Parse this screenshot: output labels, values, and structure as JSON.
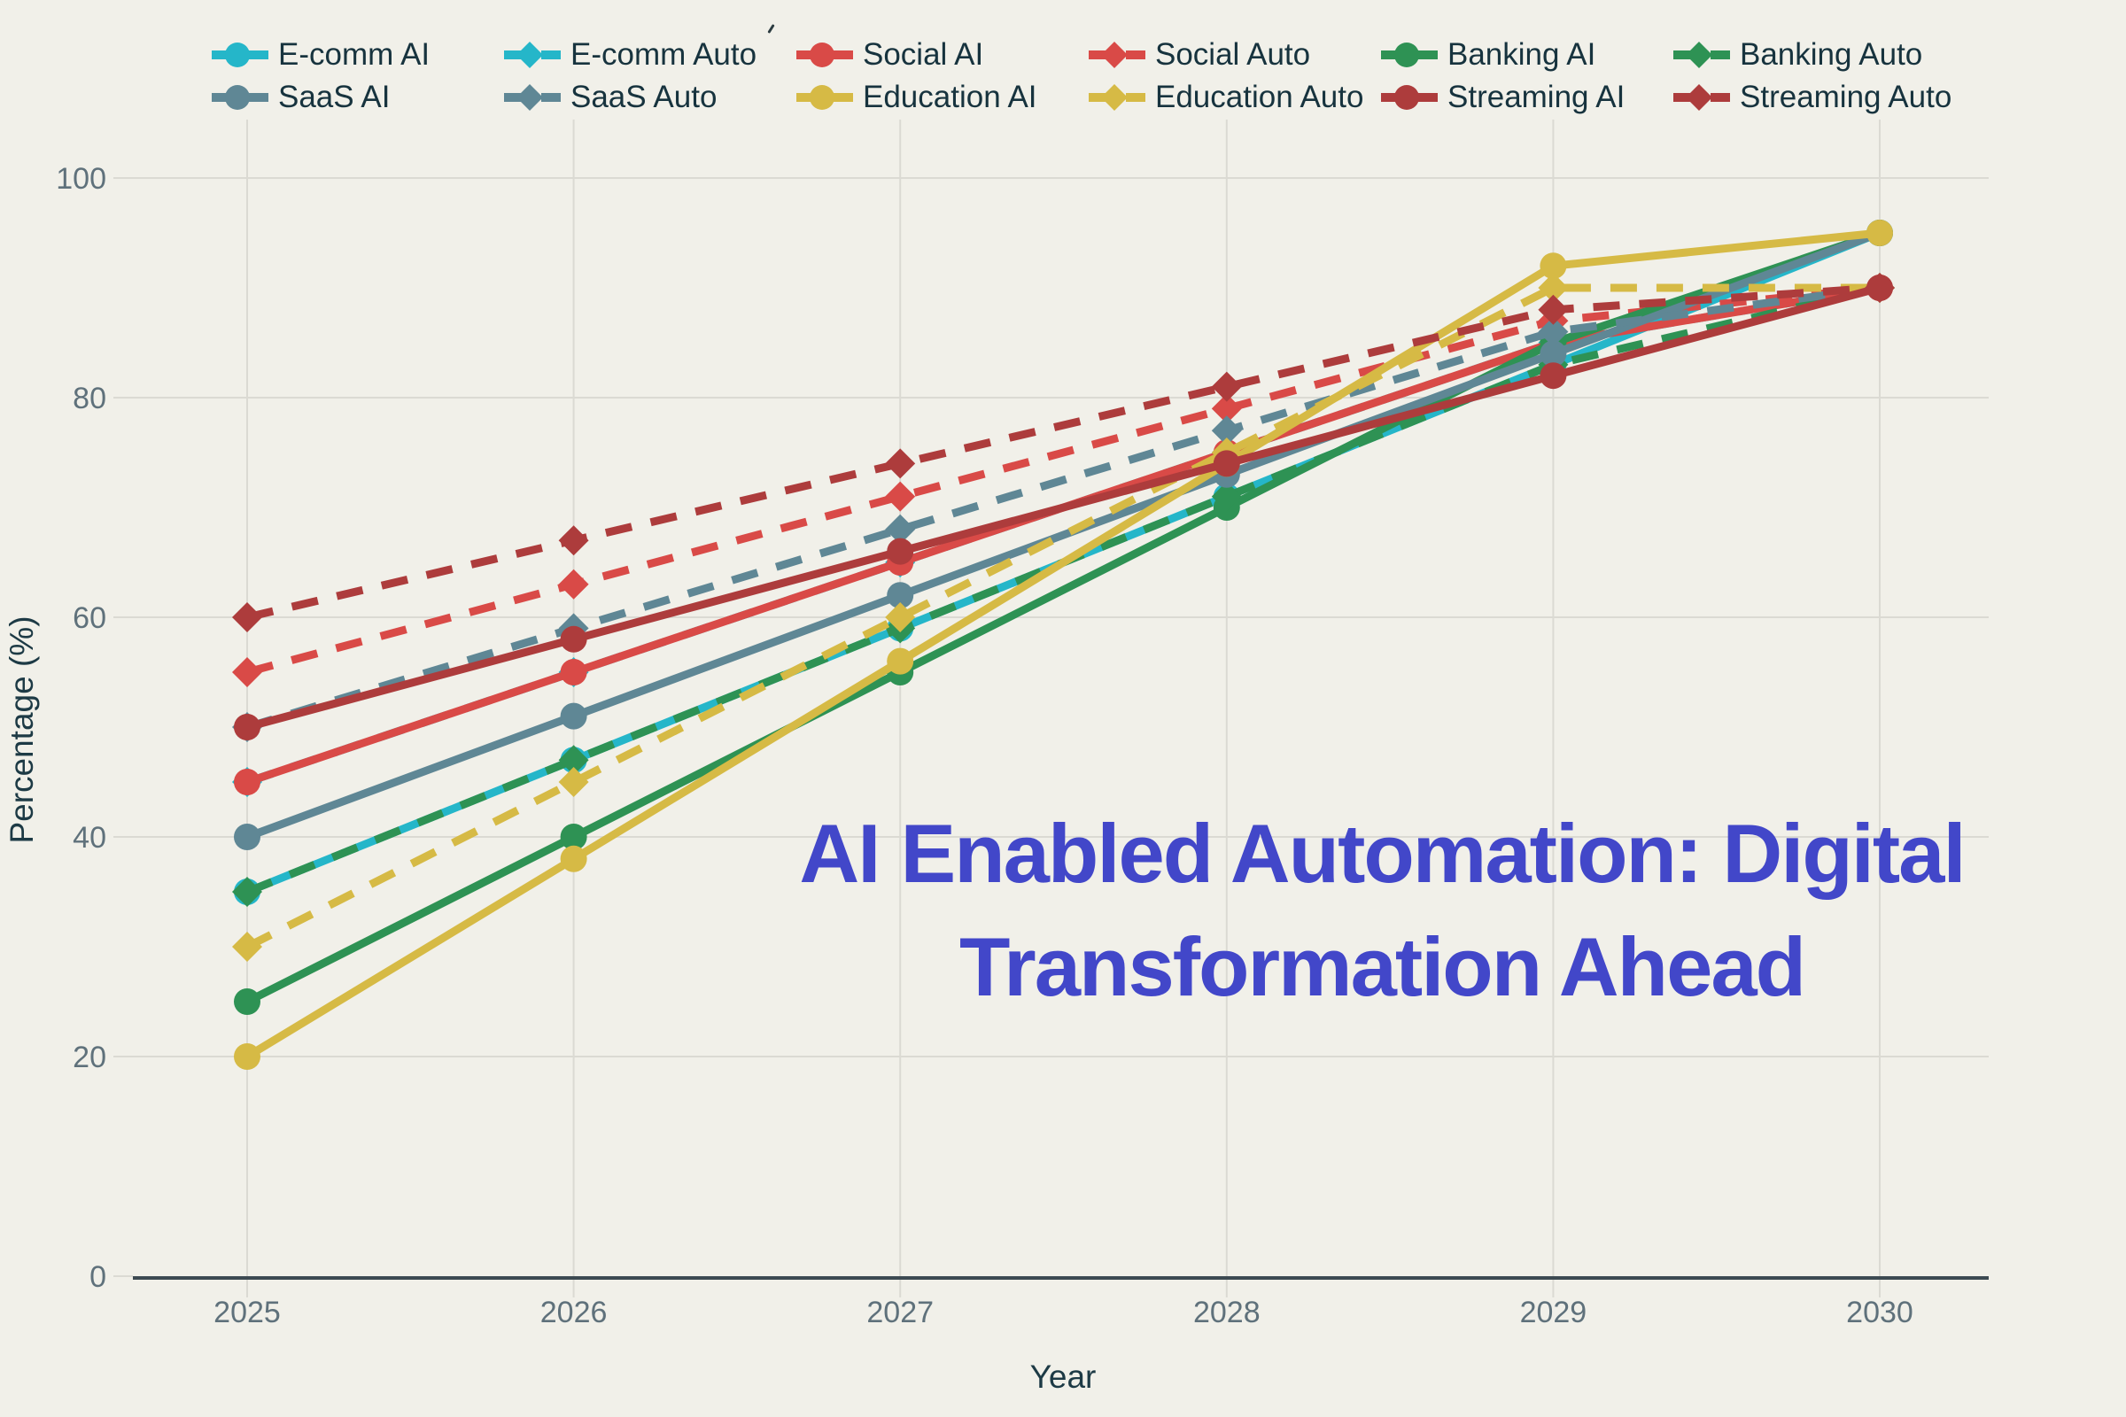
{
  "title": {
    "line1": "AI Enabled Automation: Digital",
    "line2": "Transformation Ahead"
  },
  "axes": {
    "x_label": "Year",
    "y_label": "Percentage (%)",
    "x_ticks": [
      "2025",
      "2026",
      "2027",
      "2028",
      "2029",
      "2030"
    ],
    "y_ticks": [
      "0",
      "20",
      "40",
      "60",
      "80",
      "100"
    ]
  },
  "colors": {
    "background": "#f1f0e9",
    "gridline": "#dbdad3",
    "axis_line": "#3d4a52",
    "tick_text": "#5f717b",
    "axis_label_text": "#1d3a45",
    "legend_text": "#17333e",
    "title_text": "#4247c9",
    "ecomm": "#25b6c9",
    "social": "#d94a47",
    "banking": "#2e9254",
    "saas": "#5f8795",
    "education": "#d6ba45",
    "streaming": "#ad3c3c"
  },
  "chart_data": {
    "type": "line",
    "title": "AI Enabled Automation: Digital Transformation Ahead",
    "xlabel": "Year",
    "ylabel": "Percentage (%)",
    "x": [
      2025,
      2026,
      2027,
      2028,
      2029,
      2030
    ],
    "ylim": [
      0,
      100
    ],
    "grid": true,
    "legend_position": "top",
    "series": [
      {
        "name": "E-comm AI",
        "color": "#25b6c9",
        "style": "solid",
        "marker": "circle",
        "values": [
          35,
          47,
          59,
          71,
          83,
          95
        ]
      },
      {
        "name": "E-comm Auto",
        "color": "#25b6c9",
        "style": "dashed",
        "marker": "diamond",
        "values": [
          45,
          55,
          65,
          75,
          85,
          90
        ]
      },
      {
        "name": "Social AI",
        "color": "#d94a47",
        "style": "solid",
        "marker": "circle",
        "values": [
          45,
          55,
          65,
          75,
          85,
          90
        ]
      },
      {
        "name": "Social Auto",
        "color": "#d94a47",
        "style": "dashed",
        "marker": "diamond",
        "values": [
          55,
          63,
          71,
          79,
          87,
          90
        ]
      },
      {
        "name": "Banking AI",
        "color": "#2e9254",
        "style": "solid",
        "marker": "circle",
        "values": [
          25,
          40,
          55,
          70,
          85,
          95
        ]
      },
      {
        "name": "Banking Auto",
        "color": "#2e9254",
        "style": "dashed",
        "marker": "diamond",
        "values": [
          35,
          47,
          59,
          71,
          83,
          90
        ]
      },
      {
        "name": "SaaS AI",
        "color": "#5f8795",
        "style": "solid",
        "marker": "circle",
        "values": [
          40,
          51,
          62,
          73,
          84,
          95
        ]
      },
      {
        "name": "SaaS Auto",
        "color": "#5f8795",
        "style": "dashed",
        "marker": "diamond",
        "values": [
          50,
          59,
          68,
          77,
          86,
          90
        ]
      },
      {
        "name": "Education AI",
        "color": "#d6ba45",
        "style": "solid",
        "marker": "circle",
        "values": [
          20,
          38,
          56,
          74,
          92,
          95
        ]
      },
      {
        "name": "Education Auto",
        "color": "#d6ba45",
        "style": "dashed",
        "marker": "diamond",
        "values": [
          30,
          45,
          60,
          75,
          90,
          90
        ]
      },
      {
        "name": "Streaming AI",
        "color": "#ad3c3c",
        "style": "solid",
        "marker": "circle",
        "values": [
          50,
          58,
          66,
          74,
          82,
          90
        ]
      },
      {
        "name": "Streaming Auto",
        "color": "#ad3c3c",
        "style": "dashed",
        "marker": "diamond",
        "values": [
          60,
          67,
          74,
          81,
          88,
          90
        ]
      }
    ]
  }
}
